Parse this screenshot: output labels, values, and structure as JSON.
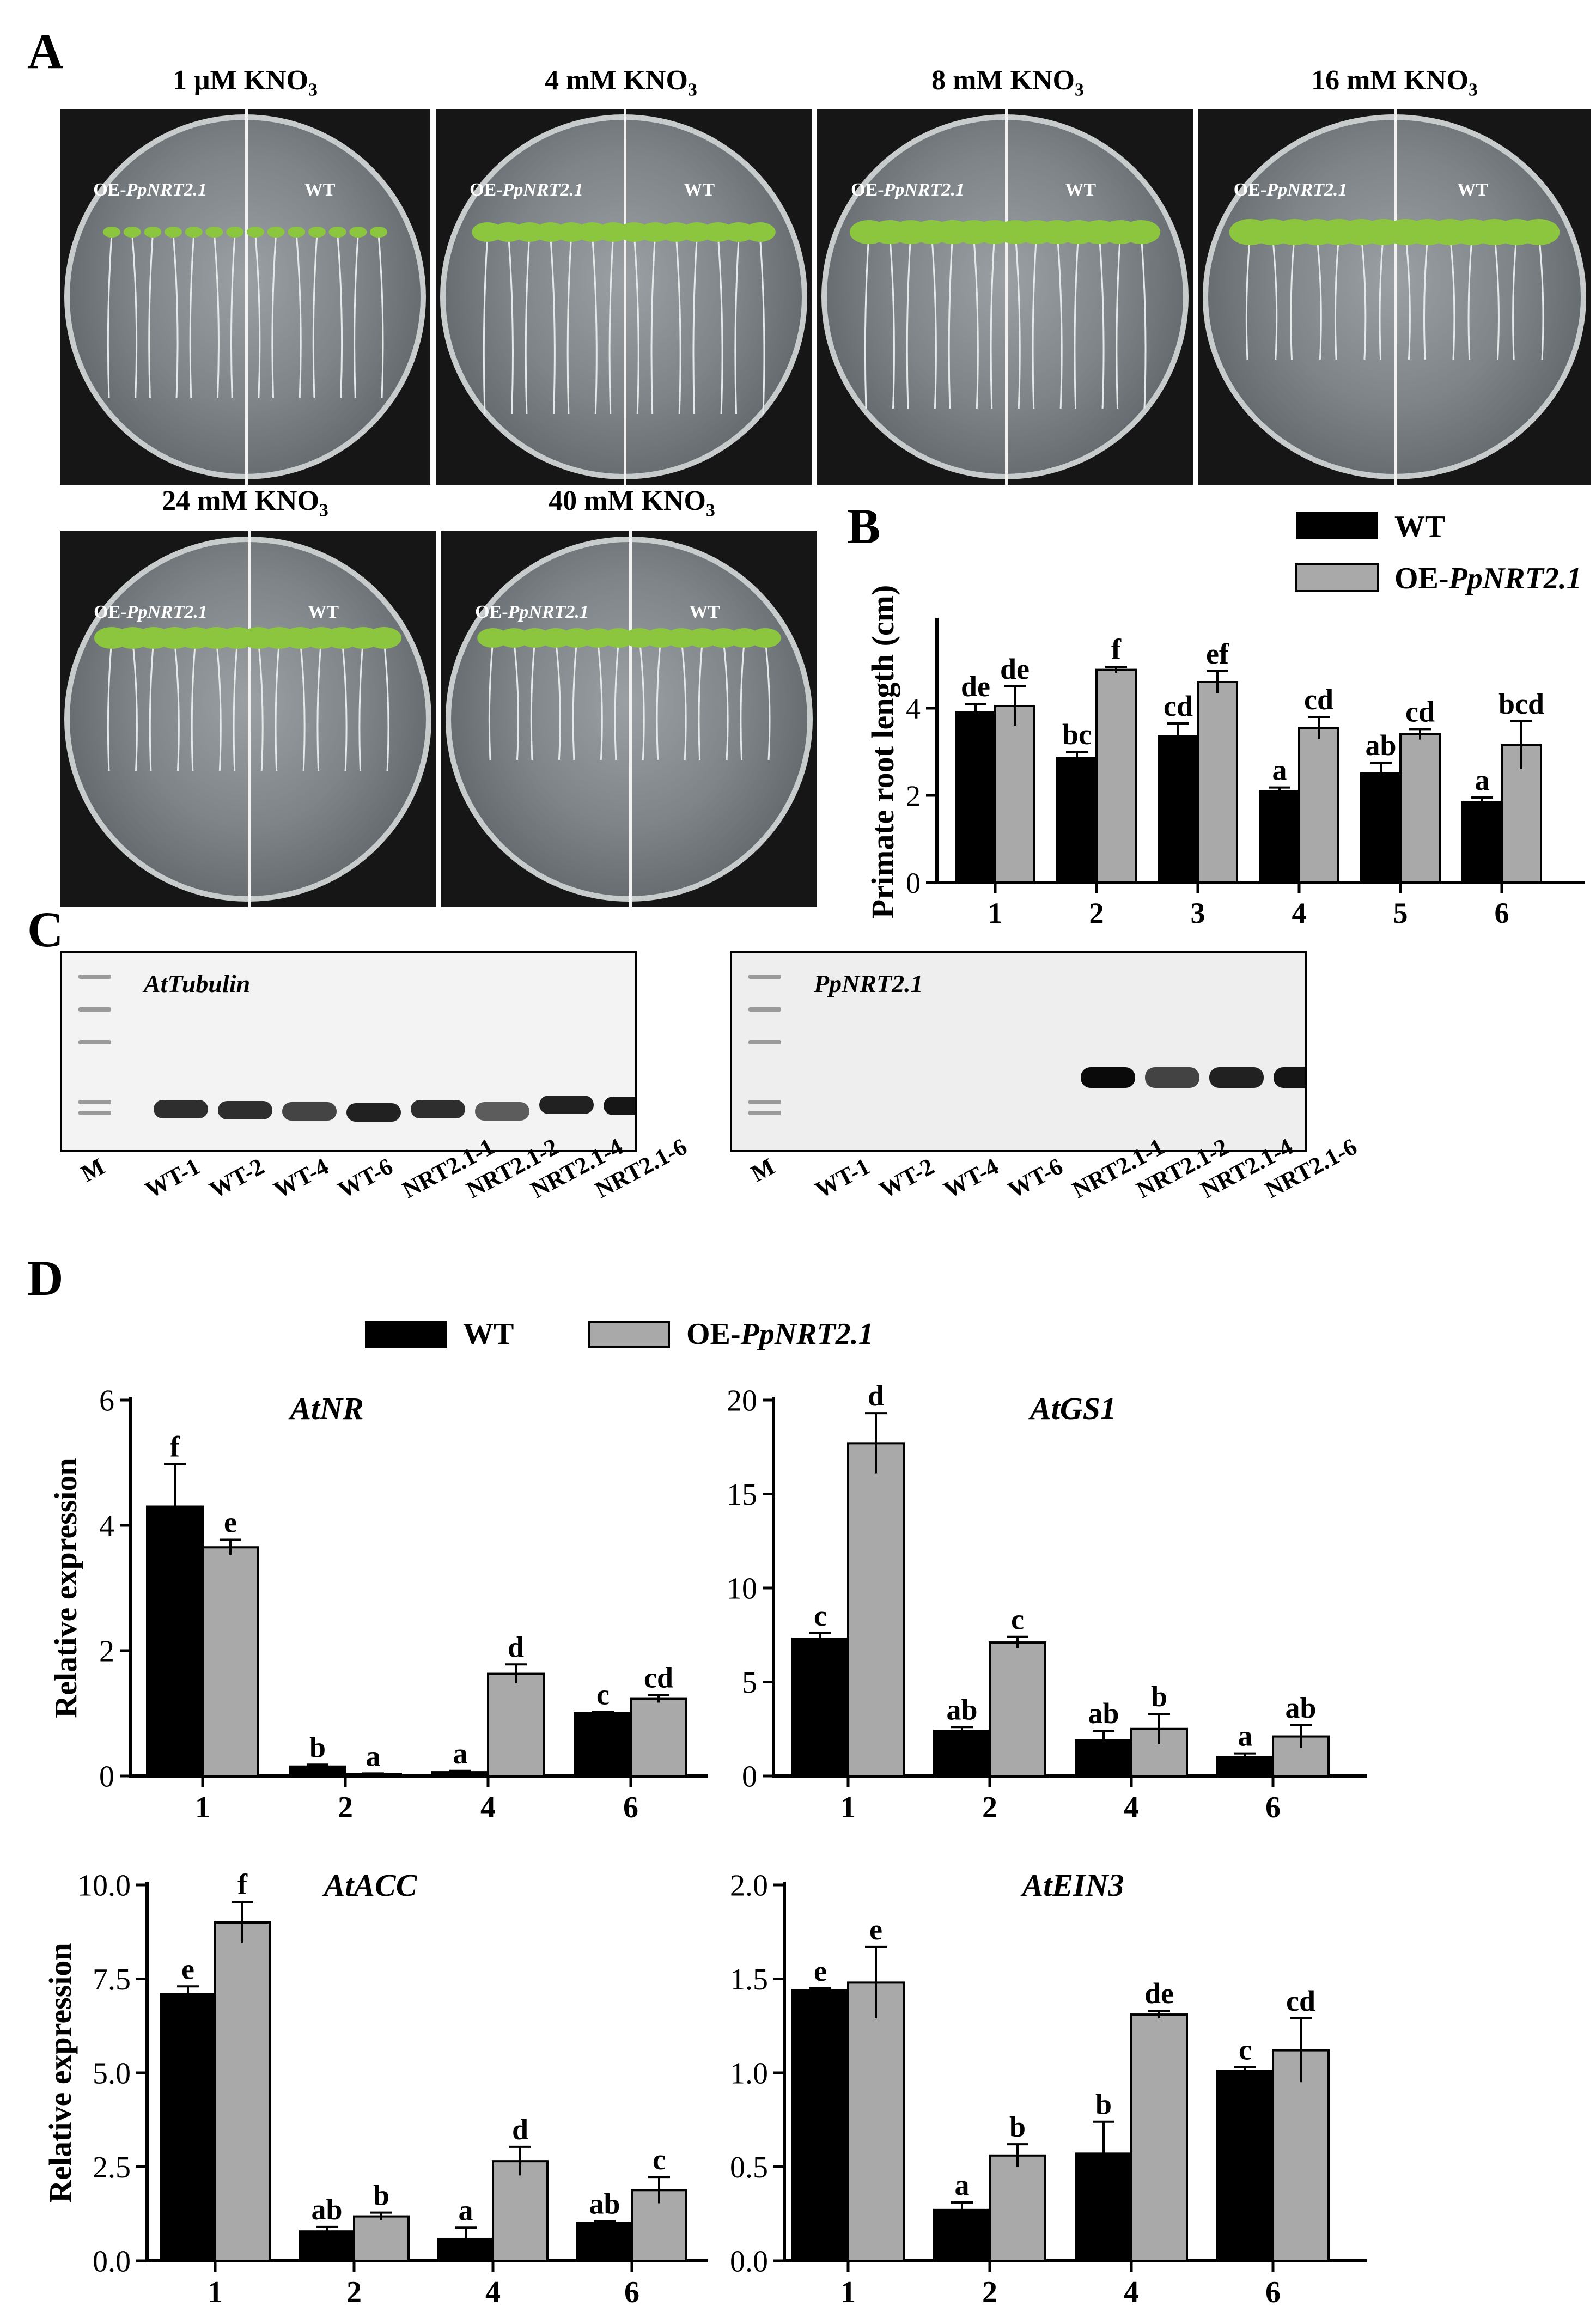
{
  "panels": {
    "a": "A",
    "b": "B",
    "c": "C",
    "d": "D"
  },
  "plates": [
    {
      "title_main": "1 μM KNO",
      "sub": "3",
      "left": "OE-",
      "left_it": "PpNRT2.1",
      "right": "WT"
    },
    {
      "title_main": "4 mM KNO",
      "sub": "3",
      "left": "OE-",
      "left_it": "PpNRT2.1",
      "right": "WT"
    },
    {
      "title_main": "8 mM KNO",
      "sub": "3",
      "left": "OE-",
      "left_it": "PpNRT2.1",
      "right": "WT"
    },
    {
      "title_main": "16 mM KNO",
      "sub": "3",
      "left": "OE-",
      "left_it": "PpNRT2.1",
      "right": "WT"
    },
    {
      "title_main": "24 mM KNO",
      "sub": "3",
      "left": "OE-",
      "left_it": "PpNRT2.1",
      "right": "WT"
    },
    {
      "title_main": "40 mM KNO",
      "sub": "3",
      "left": "OE-",
      "left_it": "PpNRT2.1",
      "right": "WT"
    }
  ],
  "gels": [
    {
      "title": "AtTubulin",
      "lanes": [
        "M",
        "WT-1",
        "WT-2",
        "WT-4",
        "WT-6",
        "NRT2.1-1",
        "NRT2.1-2",
        "NRT2.1-4",
        "NRT2.1-6"
      ]
    },
    {
      "title": "PpNRT2.1",
      "lanes": [
        "M",
        "WT-1",
        "WT-2",
        "WT-4",
        "WT-6",
        "NRT2.1-1",
        "NRT2.1-2",
        "NRT2.1-4",
        "NRT2.1-6"
      ]
    }
  ],
  "legend_d": {
    "wt": "WT",
    "oe_prefix": "OE-",
    "oe_it": "PpNRT2.1"
  },
  "colors": {
    "wt": "#000000",
    "oe": "#a9a9a9",
    "edge": "#000000"
  },
  "chart_data": [
    {
      "id": "B",
      "type": "bar",
      "title": "",
      "xlabel": "",
      "ylabel": "Primate root length  (cm)",
      "categories": [
        "1",
        "2",
        "3",
        "4",
        "5",
        "6"
      ],
      "ylim": [
        0,
        6
      ],
      "yticks": [
        0,
        2,
        4
      ],
      "legend": {
        "position": "top-right",
        "entries": [
          "WT",
          "OE-PpNRT2.1"
        ]
      },
      "series": [
        {
          "name": "WT",
          "values": [
            3.9,
            2.85,
            3.35,
            2.1,
            2.5,
            1.85
          ],
          "errors": [
            0.2,
            0.15,
            0.3,
            0.08,
            0.25,
            0.1
          ],
          "letters": [
            "de",
            "bc",
            "cd",
            "a",
            "ab",
            "a"
          ]
        },
        {
          "name": "OE-PpNRT2.1",
          "values": [
            4.05,
            4.88,
            4.6,
            3.55,
            3.4,
            3.15
          ],
          "errors": [
            0.45,
            0.07,
            0.25,
            0.25,
            0.12,
            0.55
          ],
          "letters": [
            "de",
            "f",
            "ef",
            "cd",
            "cd",
            "bcd"
          ]
        }
      ]
    },
    {
      "id": "AtNR",
      "type": "bar",
      "title": "AtNR",
      "ylabel": "Relative expression",
      "categories": [
        "1",
        "2",
        "4",
        "6"
      ],
      "ylim": [
        0,
        6
      ],
      "yticks": [
        0,
        2,
        4,
        6
      ],
      "series": [
        {
          "name": "WT",
          "values": [
            4.3,
            0.15,
            0.06,
            1.0
          ],
          "errors": [
            0.68,
            0.03,
            0.02,
            0.02
          ],
          "letters": [
            "f",
            "b",
            "a",
            "c"
          ]
        },
        {
          "name": "OE-PpNRT2.1",
          "values": [
            3.65,
            0.03,
            1.63,
            1.23
          ],
          "errors": [
            0.12,
            0.01,
            0.15,
            0.06
          ],
          "letters": [
            "e",
            "a",
            "d",
            "cd"
          ]
        }
      ]
    },
    {
      "id": "AtGS1",
      "type": "bar",
      "title": "AtGS1",
      "ylabel": "",
      "categories": [
        "1",
        "2",
        "4",
        "6"
      ],
      "ylim": [
        0,
        20
      ],
      "yticks": [
        0,
        5,
        10,
        15,
        20
      ],
      "series": [
        {
          "name": "WT",
          "values": [
            7.3,
            2.4,
            1.9,
            1.0
          ],
          "errors": [
            0.3,
            0.2,
            0.5,
            0.2
          ],
          "letters": [
            "c",
            "ab",
            "ab",
            "a"
          ]
        },
        {
          "name": "OE-PpNRT2.1",
          "values": [
            17.7,
            7.1,
            2.5,
            2.1
          ],
          "errors": [
            1.6,
            0.3,
            0.8,
            0.6
          ],
          "letters": [
            "d",
            "c",
            "b",
            "ab"
          ]
        }
      ]
    },
    {
      "id": "AtACC",
      "type": "bar",
      "title": "AtACC",
      "ylabel": "Relative expression",
      "categories": [
        "1",
        "2",
        "4",
        "6"
      ],
      "ylim": [
        0,
        10
      ],
      "yticks": [
        0.0,
        2.5,
        5.0,
        7.5,
        10.0
      ],
      "series": [
        {
          "name": "WT",
          "values": [
            7.1,
            0.78,
            0.58,
            1.0
          ],
          "errors": [
            0.2,
            0.12,
            0.3,
            0.05
          ],
          "letters": [
            "e",
            "ab",
            "a",
            "ab"
          ]
        },
        {
          "name": "OE-PpNRT2.1",
          "values": [
            9.0,
            1.18,
            2.65,
            1.88
          ],
          "errors": [
            0.55,
            0.1,
            0.38,
            0.35
          ],
          "letters": [
            "f",
            "b",
            "d",
            "c"
          ]
        }
      ]
    },
    {
      "id": "AtEIN3",
      "type": "bar",
      "title": "AtEIN3",
      "ylabel": "",
      "categories": [
        "1",
        "2",
        "4",
        "6"
      ],
      "ylim": [
        0,
        2
      ],
      "yticks": [
        0.0,
        0.5,
        1.0,
        1.5,
        2.0
      ],
      "series": [
        {
          "name": "WT",
          "values": [
            1.44,
            0.27,
            0.57,
            1.01
          ],
          "errors": [
            0.01,
            0.04,
            0.17,
            0.02
          ],
          "letters": [
            "e",
            "a",
            "b",
            "c"
          ]
        },
        {
          "name": "OE-PpNRT2.1",
          "values": [
            1.48,
            0.56,
            1.31,
            1.12
          ],
          "errors": [
            0.19,
            0.06,
            0.02,
            0.17
          ],
          "letters": [
            "e",
            "b",
            "de",
            "cd"
          ]
        }
      ]
    }
  ]
}
